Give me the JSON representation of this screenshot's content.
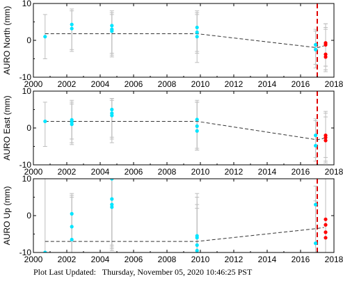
{
  "footer": {
    "text": "Plot Last Updated:   Thursday, November 05, 2020 10:46:25 PST"
  },
  "chart_data": [
    {
      "type": "scatter",
      "ylabel": "AURO North (mm)",
      "xlim": [
        2000,
        2018
      ],
      "ylim": [
        -10,
        10
      ],
      "xticks": [
        2000,
        2002,
        2004,
        2006,
        2008,
        2010,
        2012,
        2014,
        2016,
        2018
      ],
      "yticks": [
        -10,
        0,
        10
      ],
      "event_line_x": 2017.0,
      "trend": [
        [
          2000.7,
          1.8
        ],
        [
          2009.8,
          1.8
        ],
        [
          2017.0,
          -2.0
        ],
        [
          2017.4,
          -1.5
        ]
      ],
      "series": [
        {
          "color": "#00e5ff",
          "points": [
            {
              "x": 2000.7,
              "y": 1.0,
              "lo": -5.0,
              "hi": 7.0
            },
            {
              "x": 2002.3,
              "y": 4.3,
              "lo": -2.5,
              "hi": 8.0
            },
            {
              "x": 2002.3,
              "y": 3.2,
              "lo": -3.0,
              "hi": 8.5
            },
            {
              "x": 2004.7,
              "y": 4.0,
              "lo": -4.0,
              "hi": 7.5
            },
            {
              "x": 2004.7,
              "y": 3.0,
              "lo": -3.5,
              "hi": 8.0
            },
            {
              "x": 2004.7,
              "y": 2.5,
              "lo": -4.5,
              "hi": 7.0
            },
            {
              "x": 2009.8,
              "y": 3.5,
              "lo": -3.5,
              "hi": 7.5
            },
            {
              "x": 2009.8,
              "y": 2.2,
              "lo": -6.0,
              "hi": 7.0
            },
            {
              "x": 2009.8,
              "y": 1.0,
              "lo": -3.0,
              "hi": 8.0
            },
            {
              "x": 2016.9,
              "y": -1.2,
              "lo": -6.5,
              "hi": 2.5
            },
            {
              "x": 2016.9,
              "y": -2.5,
              "lo": -7.5,
              "hi": 3.0
            }
          ]
        },
        {
          "color": "#ff0000",
          "points": [
            {
              "x": 2017.5,
              "y": -0.7,
              "lo": -8.5,
              "hi": 4.5
            },
            {
              "x": 2017.5,
              "y": -1.2,
              "lo": -8.0,
              "hi": 4.5
            },
            {
              "x": 2017.5,
              "y": -3.8,
              "lo": -7.0,
              "hi": 3.5
            },
            {
              "x": 2017.5,
              "y": -4.5,
              "lo": -7.0,
              "hi": 3.0
            }
          ]
        }
      ]
    },
    {
      "type": "scatter",
      "ylabel": "AURO East (mm)",
      "xlim": [
        2000,
        2018
      ],
      "ylim": [
        -10,
        10
      ],
      "xticks": [
        2000,
        2002,
        2004,
        2006,
        2008,
        2010,
        2012,
        2014,
        2016,
        2018
      ],
      "yticks": [
        -10,
        0,
        10
      ],
      "event_line_x": 2017.0,
      "trend": [
        [
          2000.7,
          1.8
        ],
        [
          2009.8,
          1.8
        ],
        [
          2017.0,
          -3.2
        ],
        [
          2017.4,
          -2.8
        ]
      ],
      "series": [
        {
          "color": "#00e5ff",
          "points": [
            {
              "x": 2000.7,
              "y": 1.8,
              "lo": -5.0,
              "hi": 7.0
            },
            {
              "x": 2002.3,
              "y": 2.2,
              "lo": -4.5,
              "hi": 7.5
            },
            {
              "x": 2002.3,
              "y": 1.6,
              "lo": -4.0,
              "hi": 6.5
            },
            {
              "x": 2002.3,
              "y": 1.0,
              "lo": -3.0,
              "hi": 7.0
            },
            {
              "x": 2004.7,
              "y": 5.0,
              "lo": -3.0,
              "hi": 8.0
            },
            {
              "x": 2004.7,
              "y": 4.0,
              "lo": -2.5,
              "hi": 7.5
            },
            {
              "x": 2004.7,
              "y": 3.4,
              "lo": -4.0,
              "hi": 8.0
            },
            {
              "x": 2009.8,
              "y": 2.3,
              "lo": -6.0,
              "hi": 7.5
            },
            {
              "x": 2009.8,
              "y": 0.5,
              "lo": -5.5,
              "hi": 7.0
            },
            {
              "x": 2009.8,
              "y": -0.8,
              "lo": -6.0,
              "hi": 7.0
            },
            {
              "x": 2016.9,
              "y": -2.0,
              "lo": -8.0,
              "hi": 2.0
            },
            {
              "x": 2016.9,
              "y": -4.8,
              "lo": -9.0,
              "hi": 2.5
            }
          ]
        },
        {
          "color": "#ff0000",
          "points": [
            {
              "x": 2017.5,
              "y": -2.0,
              "lo": -8.0,
              "hi": 4.0
            },
            {
              "x": 2017.5,
              "y": -2.6,
              "lo": -9.0,
              "hi": 4.5
            },
            {
              "x": 2017.5,
              "y": -3.4,
              "lo": -9.5,
              "hi": 3.0
            }
          ]
        }
      ]
    },
    {
      "type": "scatter",
      "ylabel": "AURO Up (mm)",
      "xlim": [
        2000,
        2018
      ],
      "ylim": [
        -10,
        10
      ],
      "xticks": [
        2000,
        2002,
        2004,
        2006,
        2008,
        2010,
        2012,
        2014,
        2016,
        2018
      ],
      "yticks": [
        -10,
        0,
        10
      ],
      "event_line_x": 2017.0,
      "trend": [
        [
          2000.7,
          -7.0
        ],
        [
          2009.8,
          -7.0
        ],
        [
          2017.0,
          -3.5
        ],
        [
          2017.4,
          -3.2
        ]
      ],
      "series": [
        {
          "color": "#00e5ff",
          "points": [
            {
              "x": 2000.7,
              "y": -10.0,
              "lo": -14.0,
              "hi": 10.0
            },
            {
              "x": 2002.3,
              "y": 0.5,
              "lo": -10.0,
              "hi": 5.5
            },
            {
              "x": 2002.3,
              "y": -3.0,
              "lo": -10.0,
              "hi": 5.0
            },
            {
              "x": 2002.3,
              "y": -6.5,
              "lo": -10.0,
              "hi": 6.0
            },
            {
              "x": 2004.7,
              "y": 10.0,
              "lo": -8.0,
              "hi": 10.0
            },
            {
              "x": 2004.7,
              "y": 4.5,
              "lo": -9.0,
              "hi": 10.0
            },
            {
              "x": 2004.7,
              "y": 3.0,
              "lo": -9.5,
              "hi": 10.0
            },
            {
              "x": 2004.7,
              "y": 2.3,
              "lo": -8.5,
              "hi": 10.0
            },
            {
              "x": 2009.8,
              "y": -5.5,
              "lo": -10.0,
              "hi": 6.0
            },
            {
              "x": 2009.8,
              "y": -6.0,
              "lo": -10.0,
              "hi": 2.0
            },
            {
              "x": 2009.8,
              "y": -8.0,
              "lo": -10.0,
              "hi": 5.0
            },
            {
              "x": 2009.8,
              "y": -9.5,
              "lo": -10.0,
              "hi": 3.0
            },
            {
              "x": 2016.9,
              "y": 3.0,
              "lo": -10.0,
              "hi": 8.0
            },
            {
              "x": 2016.9,
              "y": -7.5,
              "lo": -10.0,
              "hi": 4.0
            }
          ]
        },
        {
          "color": "#ff0000",
          "points": [
            {
              "x": 2017.5,
              "y": -1.0,
              "lo": -10.0,
              "hi": 10.0
            },
            {
              "x": 2017.5,
              "y": -2.5,
              "lo": -10.0,
              "hi": 10.0
            },
            {
              "x": 2017.5,
              "y": -4.5,
              "lo": -10.0,
              "hi": 10.0
            },
            {
              "x": 2017.5,
              "y": -6.0,
              "lo": -10.0,
              "hi": 10.0
            }
          ]
        }
      ]
    }
  ]
}
